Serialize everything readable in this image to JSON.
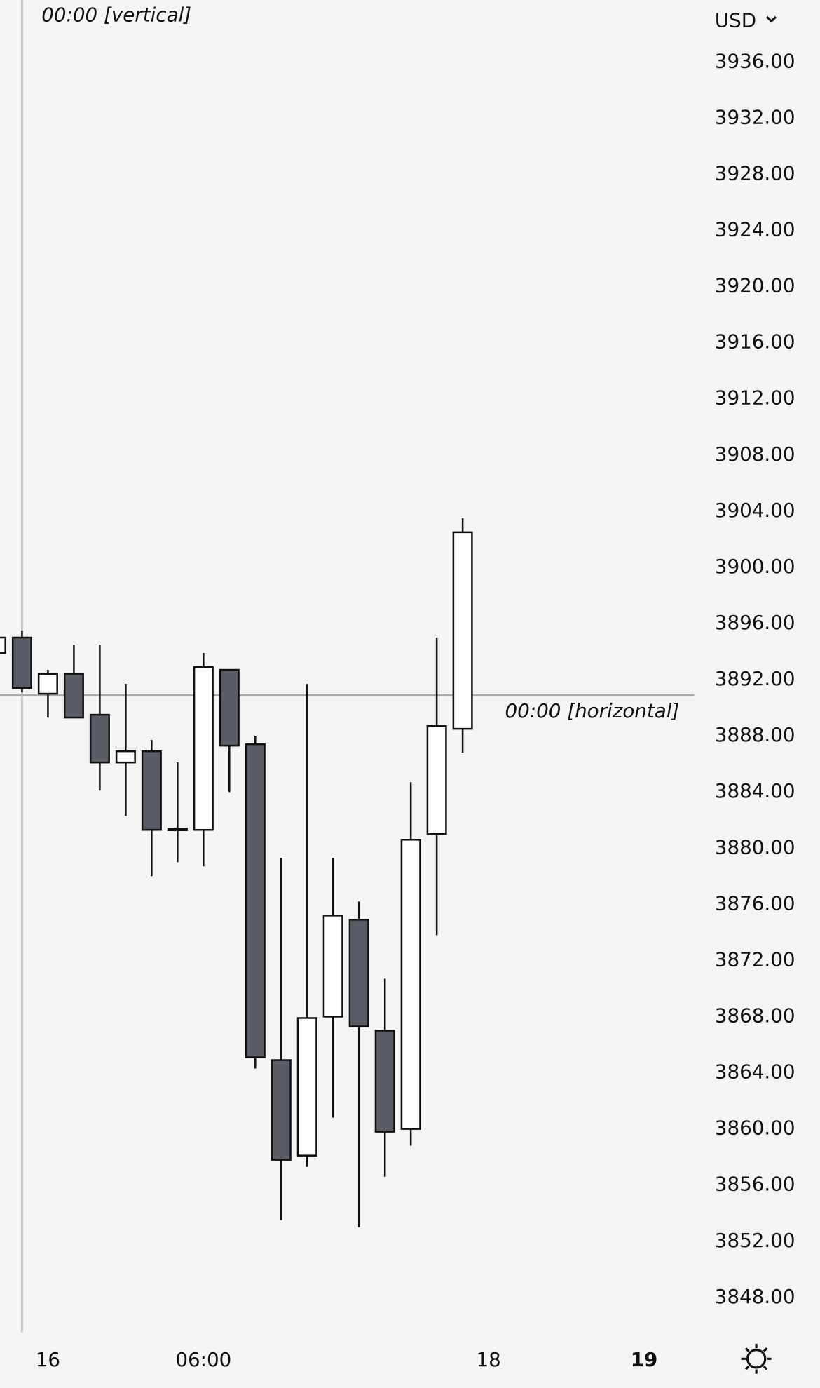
{
  "chart_data": {
    "type": "candlestick",
    "currency": "USD",
    "x": [
      -1,
      0,
      1,
      2,
      3,
      4,
      5,
      6,
      7,
      8,
      9,
      10,
      11,
      12,
      13,
      14,
      15,
      16,
      17
    ],
    "open": [
      3893.9,
      3895.0,
      3891.0,
      3892.4,
      3889.5,
      3886.1,
      3886.9,
      3881.3,
      3881.3,
      3892.7,
      3887.4,
      3864.9,
      3858.1,
      3868.0,
      3874.9,
      3867.0,
      3860.0,
      3881.0,
      3888.5
    ],
    "high": [
      3895.0,
      3895.5,
      3892.7,
      3894.5,
      3894.5,
      3891.7,
      3887.7,
      3886.1,
      3893.9,
      3892.7,
      3888.0,
      3879.3,
      3891.7,
      3879.3,
      3876.2,
      3870.7,
      3884.7,
      3895.0,
      3903.5
    ],
    "low": [
      3893.9,
      3891.1,
      3889.3,
      3889.3,
      3884.1,
      3882.3,
      3878.0,
      3879.0,
      3878.7,
      3884.0,
      3864.3,
      3853.5,
      3857.3,
      3860.8,
      3853.0,
      3856.6,
      3858.8,
      3873.8,
      3886.8
    ],
    "close": [
      3895.0,
      3891.4,
      3892.4,
      3889.3,
      3886.1,
      3886.9,
      3881.3,
      3881.4,
      3892.9,
      3887.3,
      3865.1,
      3857.8,
      3867.9,
      3875.2,
      3867.3,
      3859.8,
      3880.6,
      3888.7,
      3902.5
    ],
    "up_color": "#ffffff",
    "down_color": "#5a5d66",
    "xlim": [
      -0.85,
      25.94
    ],
    "xticks": [
      {
        "value": 1,
        "label": "16"
      },
      {
        "value": 7,
        "label": "06:00"
      },
      {
        "value": 18,
        "label": "18"
      },
      {
        "value": 24,
        "label": "19"
      }
    ],
    "ylim": [
      3845.52,
      3940.41
    ],
    "yticks": [
      {
        "value": 3936,
        "label": "3936.00"
      },
      {
        "value": 3932,
        "label": "3932.00"
      },
      {
        "value": 3928,
        "label": "3928.00"
      },
      {
        "value": 3924,
        "label": "3924.00"
      },
      {
        "value": 3920,
        "label": "3920.00"
      },
      {
        "value": 3916,
        "label": "3916.00"
      },
      {
        "value": 3912,
        "label": "3912.00"
      },
      {
        "value": 3908,
        "label": "3908.00"
      },
      {
        "value": 3904,
        "label": "3904.00"
      },
      {
        "value": 3900,
        "label": "3900.00"
      },
      {
        "value": 3896,
        "label": "3896.00"
      },
      {
        "value": 3892,
        "label": "3892.00"
      },
      {
        "value": 3888,
        "label": "3888.00"
      },
      {
        "value": 3884,
        "label": "3884.00"
      },
      {
        "value": 3880,
        "label": "3880.00"
      },
      {
        "value": 3876,
        "label": "3876.00"
      },
      {
        "value": 3872,
        "label": "3872.00"
      },
      {
        "value": 3868,
        "label": "3868.00"
      },
      {
        "value": 3864,
        "label": "3864.00"
      },
      {
        "value": 3860,
        "label": "3860.00"
      },
      {
        "value": 3856,
        "label": "3856.00"
      },
      {
        "value": 3852,
        "label": "3852.00"
      },
      {
        "value": 3848,
        "label": "3848.00"
      }
    ],
    "vertical_line": {
      "x": 0,
      "label": "00:00 [vertical]"
    },
    "horizontal_line": {
      "value": 3890.9,
      "label": "00:00 [horizontal]"
    }
  }
}
